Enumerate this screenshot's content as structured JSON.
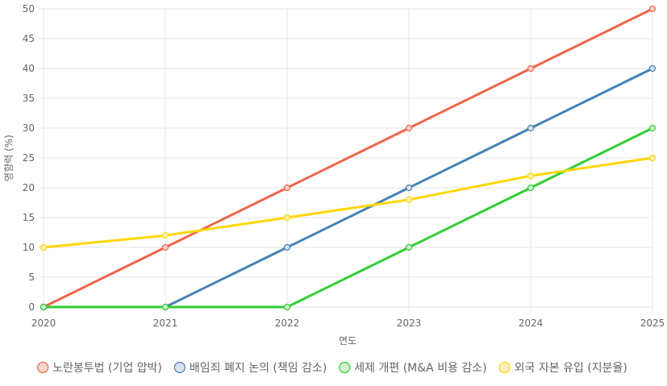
{
  "chart_data": {
    "type": "line",
    "title": "",
    "xlabel": "연도",
    "ylabel": "영향력 (%)",
    "x": [
      "2020",
      "2021",
      "2022",
      "2023",
      "2024",
      "2025"
    ],
    "yticks": [
      "0",
      "5",
      "10",
      "15",
      "20",
      "25",
      "30",
      "35",
      "40",
      "45",
      "50"
    ],
    "ylim": [
      0,
      50
    ],
    "grid": true,
    "legend_position": "bottom",
    "series": [
      {
        "name": "노란봉투법 (기업 압박)",
        "color": "#f0654a",
        "fill": "#f5d5cf",
        "values": [
          0,
          10,
          20,
          30,
          40,
          50
        ]
      },
      {
        "name": "배임죄 폐지 논의 (책임 감소)",
        "color": "#4682b4",
        "fill": "#d8e2ec",
        "values": [
          0,
          0,
          10,
          20,
          30,
          40
        ]
      },
      {
        "name": "세제 개편 (M&A 비용 감소)",
        "color": "#32cd32",
        "fill": "#d2f0d2",
        "values": [
          0,
          0,
          0,
          10,
          20,
          30
        ]
      },
      {
        "name": "외국 자본 유입 (지분율)",
        "color": "#ffd700",
        "fill": "#f9efc4",
        "values": [
          10,
          12,
          15,
          18,
          22,
          25
        ]
      }
    ]
  }
}
